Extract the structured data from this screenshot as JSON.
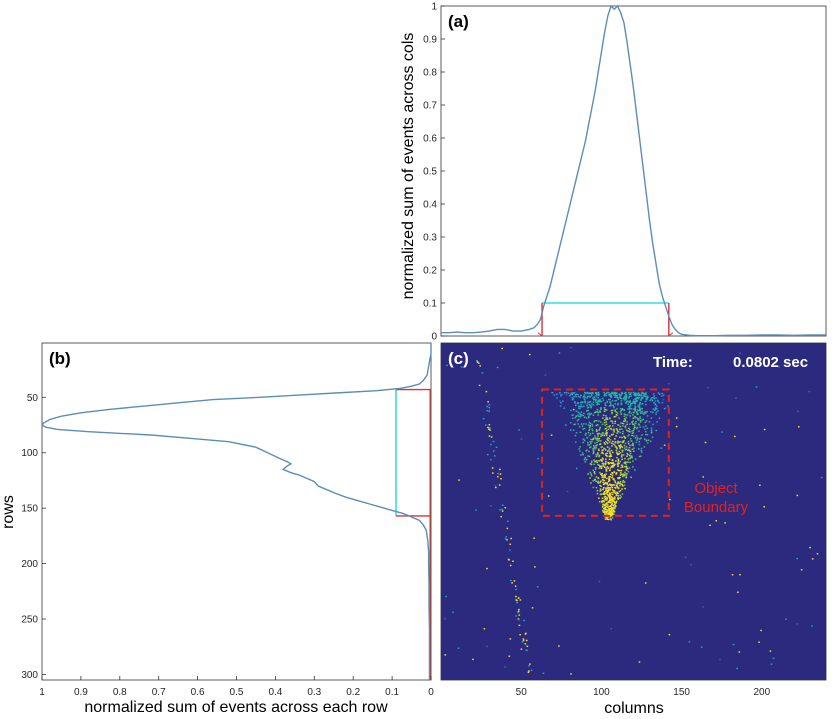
{
  "colors": {
    "curve": "#5b8db8",
    "threshold": "#33e0e0",
    "edge_marker": "#d93434",
    "heatmap_bg": "#2c2a7e",
    "boundary": "#e8201a"
  },
  "chart_data": [
    {
      "id": "a",
      "panel_label": "(a)",
      "type": "line",
      "ylabel": "normalized sum of events across cols",
      "xlabel": "",
      "ylim": [
        0,
        1
      ],
      "xlim": [
        0,
        240
      ],
      "yticks": [
        0,
        0.1,
        0.2,
        0.3,
        0.4,
        0.5,
        0.6,
        0.7,
        0.8,
        0.9,
        1
      ],
      "ytick_labels": [
        "0",
        "0.1",
        "0.2",
        "0.3",
        "0.4",
        "0.5",
        "0.6",
        "0.7",
        "0.8",
        "0.9",
        "1"
      ],
      "threshold": 0.1,
      "edges": [
        63,
        142
      ],
      "series": [
        {
          "x": [
            0,
            5,
            10,
            15,
            20,
            25,
            30,
            35,
            40,
            45,
            50,
            55,
            58,
            60,
            62,
            64,
            66,
            68,
            70,
            72,
            74,
            76,
            78,
            80,
            82,
            84,
            86,
            88,
            90,
            92,
            94,
            96,
            98,
            100,
            102,
            104,
            106,
            108,
            110,
            112,
            114,
            116,
            118,
            120,
            122,
            124,
            126,
            128,
            130,
            132,
            134,
            136,
            138,
            140,
            142,
            144,
            146,
            148,
            150,
            155,
            160,
            170,
            180,
            190,
            200,
            210,
            220,
            230,
            240
          ],
          "y": [
            0.01,
            0.01,
            0.012,
            0.01,
            0.01,
            0.012,
            0.015,
            0.02,
            0.02,
            0.015,
            0.015,
            0.02,
            0.025,
            0.035,
            0.05,
            0.09,
            0.12,
            0.15,
            0.19,
            0.23,
            0.27,
            0.31,
            0.35,
            0.39,
            0.43,
            0.47,
            0.51,
            0.55,
            0.59,
            0.64,
            0.69,
            0.74,
            0.8,
            0.86,
            0.92,
            0.97,
            1.0,
            0.99,
            1.0,
            0.98,
            0.95,
            0.89,
            0.82,
            0.75,
            0.67,
            0.59,
            0.51,
            0.43,
            0.35,
            0.28,
            0.22,
            0.16,
            0.12,
            0.09,
            0.06,
            0.035,
            0.02,
            0.01,
            0.005,
            0.002,
            0.001,
            0.001,
            0.002,
            0.002,
            0.003,
            0.003,
            0.002,
            0.003,
            0.003
          ]
        }
      ]
    },
    {
      "id": "b",
      "panel_label": "(b)",
      "type": "line",
      "xlabel": "normalized sum of events across each row",
      "ylabel": "rows",
      "xlim": [
        1,
        0
      ],
      "ylim": [
        305,
        1
      ],
      "xticks": [
        1,
        0.9,
        0.8,
        0.7,
        0.6,
        0.5,
        0.4,
        0.3,
        0.2,
        0.1,
        0
      ],
      "xtick_labels": [
        "1",
        "0.9",
        "0.8",
        "0.7",
        "0.6",
        "0.5",
        "0.4",
        "0.3",
        "0.2",
        "0.1",
        "0"
      ],
      "yticks": [
        50,
        100,
        150,
        200,
        250,
        300
      ],
      "ytick_labels": [
        "50",
        "100",
        "150",
        "200",
        "250",
        "300"
      ],
      "threshold": 0.09,
      "edges": [
        43,
        157
      ],
      "series": [
        {
          "row": [
            1,
            10,
            20,
            30,
            35,
            38,
            40,
            42,
            44,
            46,
            48,
            50,
            52,
            55,
            58,
            61,
            64,
            67,
            70,
            73,
            75,
            77,
            79,
            81,
            84,
            87,
            90,
            95,
            100,
            105,
            108,
            110,
            112,
            115,
            118,
            120,
            123,
            126,
            130,
            133,
            136,
            140,
            143,
            146,
            149,
            152,
            155,
            158,
            161,
            165,
            170,
            180,
            190,
            200,
            220,
            240,
            260,
            280,
            300,
            305
          ],
          "value": [
            0.0,
            0.0,
            0.005,
            0.01,
            0.02,
            0.03,
            0.05,
            0.08,
            0.14,
            0.24,
            0.34,
            0.44,
            0.56,
            0.65,
            0.74,
            0.83,
            0.9,
            0.95,
            0.98,
            0.995,
            1.0,
            0.99,
            0.96,
            0.88,
            0.72,
            0.62,
            0.52,
            0.45,
            0.42,
            0.39,
            0.37,
            0.36,
            0.37,
            0.38,
            0.36,
            0.34,
            0.32,
            0.3,
            0.29,
            0.27,
            0.25,
            0.22,
            0.19,
            0.16,
            0.13,
            0.1,
            0.07,
            0.05,
            0.03,
            0.02,
            0.012,
            0.008,
            0.006,
            0.006,
            0.005,
            0.005,
            0.004,
            0.004,
            0.004,
            0.004
          ]
        }
      ]
    },
    {
      "id": "c",
      "panel_label": "(c)",
      "type": "heatmap",
      "xlabel": "columns",
      "ylabel": "",
      "xlim": [
        0,
        240
      ],
      "ylim": [
        305,
        1
      ],
      "xticks": [
        50,
        100,
        150,
        200
      ],
      "xtick_labels": [
        "50",
        "100",
        "150",
        "200"
      ],
      "time_label": "Time:",
      "time_value": "0.0802 sec",
      "boundary_label_line1": "Object",
      "boundary_label_line2": "Boundary",
      "boundary_box": {
        "col_min": 63,
        "col_max": 142,
        "row_min": 43,
        "row_max": 157
      }
    }
  ]
}
